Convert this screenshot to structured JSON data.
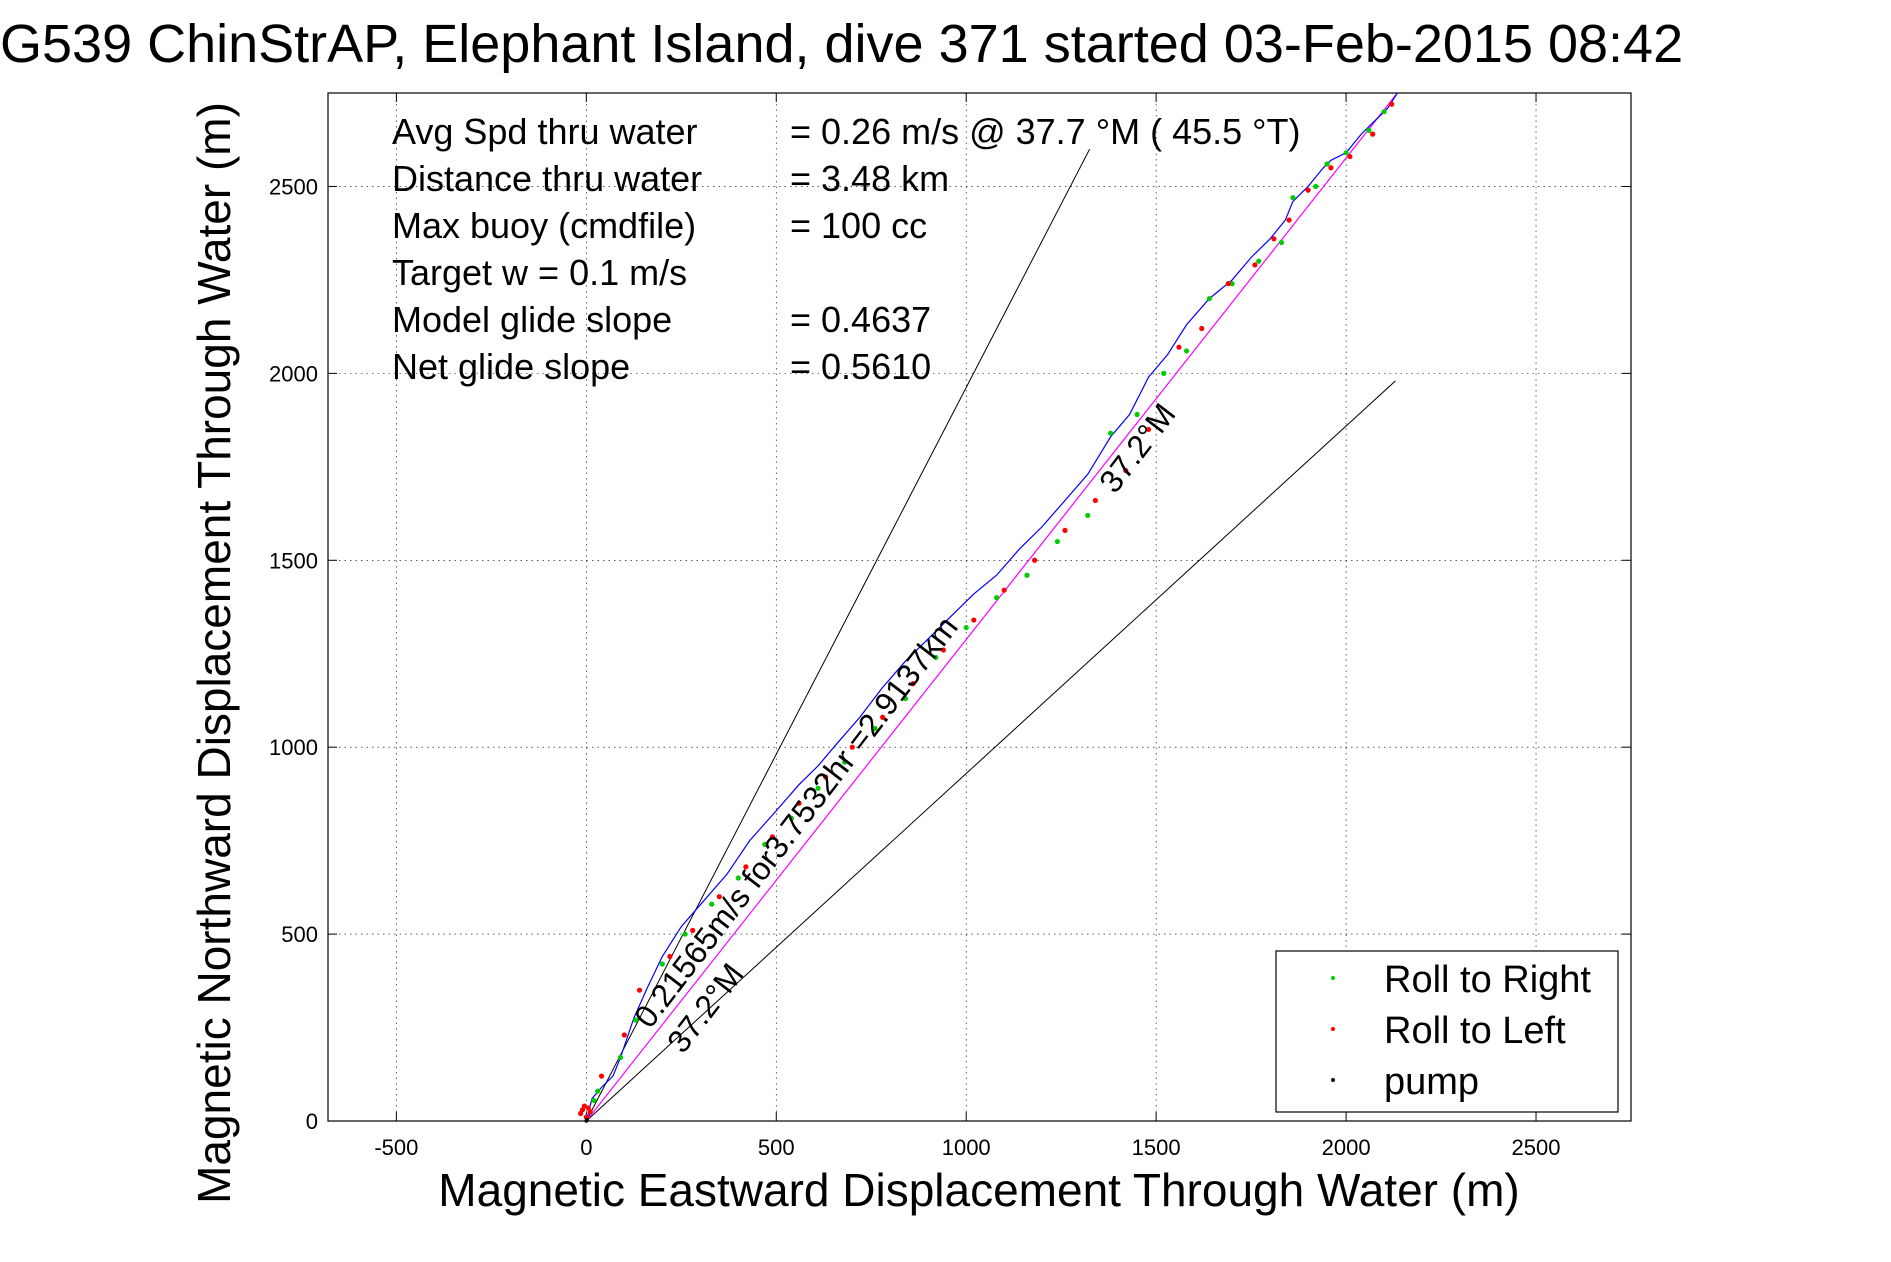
{
  "chart_data": {
    "type": "scatter",
    "title": "G539 ChinStrAP, Elephant Island, dive 371 started 03-Feb-2015 08:42",
    "xlabel": "Magnetic Eastward Displacement Through Water (m)",
    "ylabel": "Magnetic Northward Displacement Through Water (m)",
    "xlim": [
      -680,
      2750
    ],
    "ylim": [
      0,
      2750
    ],
    "xticks": [
      -500,
      0,
      500,
      1000,
      1500,
      2000,
      2500
    ],
    "xtick_labels": [
      "-500",
      "0",
      "500",
      "1000",
      "1500",
      "2000",
      "2500"
    ],
    "yticks": [
      0,
      500,
      1000,
      1500,
      2000,
      2500
    ],
    "ytick_labels": [
      "0",
      "500",
      "1000",
      "1500",
      "2000",
      "2500"
    ],
    "grid": true,
    "legend_placement": "bottom-right",
    "info_lines": [
      {
        "label": "Avg Spd thru water",
        "value": "=  0.26 m/s @  37.7 °M ( 45.5 °T)"
      },
      {
        "label": "Distance thru water",
        "value": "=  3.48 km"
      },
      {
        "label": "Max buoy (cmdfile)",
        "value": "= 100 cc"
      },
      {
        "label": "Target w    = 0.1 m/s",
        "value": ""
      },
      {
        "label": "Model glide slope",
        "value": "= 0.4637"
      },
      {
        "label": "Net glide slope",
        "value": "= 0.5610"
      }
    ],
    "annotations": {
      "track_label": "0.21565m/s for3.7532hr =2.9137km",
      "heading_upper": "37.2°M",
      "heading_lower": "37.2°M"
    },
    "colors": {
      "track": "#0000ff",
      "net": "#ff00ff",
      "roll_right": "#00cc00",
      "roll_left": "#ff0000",
      "pump": "#000000",
      "guide": "#000000"
    },
    "guide_lines": [
      {
        "x": [
          0,
          1325
        ],
        "y": [
          0,
          2600
        ]
      },
      {
        "x": [
          0,
          2130
        ],
        "y": [
          0,
          1980
        ]
      }
    ],
    "net_line": {
      "x": [
        0,
        2135
      ],
      "y": [
        0,
        2750
      ]
    },
    "series": [
      {
        "name": "track",
        "x": [
          0,
          15,
          40,
          70,
          90,
          110,
          125,
          160,
          200,
          250,
          310,
          370,
          430,
          500,
          560,
          610,
          660,
          720,
          780,
          840,
          900,
          960,
          1020,
          1080,
          1140,
          1200,
          1260,
          1320,
          1380,
          1430,
          1480,
          1530,
          1580,
          1640,
          1700,
          1750,
          1800,
          1840,
          1860,
          1900,
          1940,
          1960,
          2000,
          2040,
          2080,
          2110,
          2135
        ],
        "y": [
          0,
          60,
          90,
          120,
          170,
          230,
          275,
          355,
          440,
          520,
          590,
          660,
          750,
          830,
          900,
          950,
          1010,
          1080,
          1160,
          1230,
          1290,
          1350,
          1410,
          1460,
          1530,
          1590,
          1660,
          1730,
          1830,
          1890,
          1990,
          2050,
          2130,
          2200,
          2250,
          2310,
          2360,
          2410,
          2460,
          2500,
          2550,
          2570,
          2590,
          2640,
          2680,
          2710,
          2750
        ]
      },
      {
        "name": "Roll to Right",
        "x": [
          20,
          30,
          90,
          130,
          200,
          260,
          330,
          400,
          470,
          540,
          610,
          680,
          760,
          840,
          920,
          1000,
          1080,
          1160,
          1240,
          1320,
          1380,
          1450,
          1520,
          1580,
          1640,
          1700,
          1770,
          1830,
          1860,
          1920,
          1950,
          2000,
          2060,
          2100
        ],
        "y": [
          55,
          80,
          170,
          270,
          420,
          500,
          580,
          650,
          740,
          810,
          890,
          960,
          1050,
          1130,
          1240,
          1320,
          1400,
          1460,
          1550,
          1620,
          1840,
          1890,
          2000,
          2060,
          2200,
          2240,
          2300,
          2350,
          2470,
          2500,
          2560,
          2590,
          2650,
          2700
        ]
      },
      {
        "name": "Roll to Left",
        "x": [
          -15,
          -10,
          -5,
          0,
          5,
          10,
          40,
          100,
          140,
          220,
          280,
          350,
          420,
          490,
          560,
          630,
          700,
          780,
          860,
          940,
          1020,
          1100,
          1180,
          1260,
          1340,
          1420,
          1480,
          1560,
          1620,
          1690,
          1760,
          1810,
          1850,
          1900,
          1960,
          2010,
          2070,
          2120
        ],
        "y": [
          20,
          30,
          40,
          10,
          35,
          25,
          120,
          230,
          350,
          440,
          510,
          600,
          680,
          760,
          850,
          920,
          1000,
          1080,
          1170,
          1260,
          1340,
          1420,
          1500,
          1580,
          1660,
          1740,
          1850,
          2070,
          2120,
          2240,
          2290,
          2360,
          2410,
          2490,
          2550,
          2580,
          2640,
          2720
        ]
      },
      {
        "name": "pump",
        "x": [
          0,
          2
        ],
        "y": [
          0,
          4
        ]
      }
    ]
  }
}
